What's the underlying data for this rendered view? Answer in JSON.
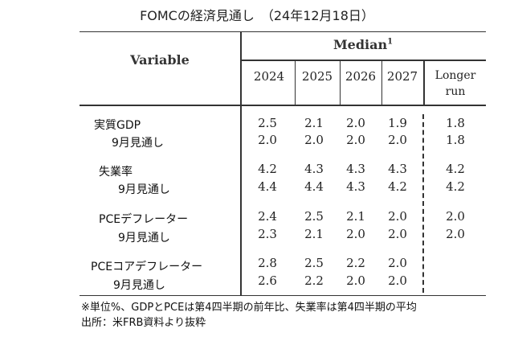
{
  "title": "FOMCの経済見通し　（24年12月18日）",
  "header": {
    "variable": "Variable",
    "median": "Median",
    "median_sup": "1",
    "years": [
      "2024",
      "2025",
      "2026",
      "2027"
    ],
    "longer_run_line1": "Longer",
    "longer_run_line2": "run"
  },
  "rows": [
    {
      "label": "実質GDP",
      "values": [
        "2.5",
        "2.1",
        "2.0",
        "1.9"
      ],
      "longer": "1.8"
    },
    {
      "label": "9月見通し",
      "values": [
        "2.0",
        "2.0",
        "2.0",
        "2.0"
      ],
      "longer": "1.8"
    },
    {
      "label": "失業率",
      "values": [
        "4.2",
        "4.3",
        "4.3",
        "4.3"
      ],
      "longer": "4.2"
    },
    {
      "label": "9月見通し",
      "values": [
        "4.4",
        "4.4",
        "4.3",
        "4.2"
      ],
      "longer": "4.2"
    },
    {
      "label": "PCEデフレーター",
      "values": [
        "2.4",
        "2.5",
        "2.1",
        "2.0"
      ],
      "longer": "2.0"
    },
    {
      "label": "9月見通し",
      "values": [
        "2.3",
        "2.1",
        "2.0",
        "2.0"
      ],
      "longer": "2.0"
    },
    {
      "label": "PCEコアデフレーター",
      "values": [
        "2.8",
        "2.5",
        "2.2",
        "2.0"
      ],
      "longer": ""
    },
    {
      "label": "9月見通し",
      "values": [
        "2.6",
        "2.2",
        "2.0",
        "2.0"
      ],
      "longer": ""
    }
  ],
  "notes": {
    "line1": "※単位%、GDPとPCEは第4四半期の前年比、失業率は第4四半期の平均",
    "line2": "出所：米FRB資料より抜粋"
  }
}
